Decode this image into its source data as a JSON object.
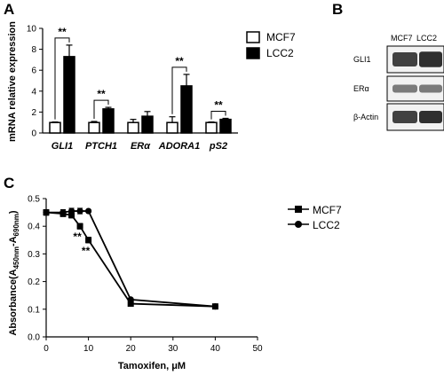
{
  "panels": {
    "a": "A",
    "b": "B",
    "c": "C"
  },
  "chart_data": [
    {
      "type": "bar",
      "panel": "A",
      "ylabel": "mRNA relative expression",
      "ylim": [
        0,
        10
      ],
      "yticks": [
        0,
        2,
        4,
        6,
        8,
        10
      ],
      "categories": [
        "GLI1",
        "PTCH1",
        "ERα",
        "ADORA1",
        "pS2"
      ],
      "series": [
        {
          "name": "MCF7",
          "values": [
            1.0,
            1.0,
            1.0,
            1.0,
            1.0
          ],
          "errors": [
            0.05,
            0.1,
            0.3,
            0.55,
            0.05
          ],
          "color": "#ffffff"
        },
        {
          "name": "LCC2",
          "values": [
            7.3,
            2.3,
            1.6,
            4.5,
            1.3
          ],
          "errors": [
            1.1,
            0.15,
            0.45,
            1.1,
            0.1
          ],
          "color": "#000000"
        }
      ],
      "significance": [
        {
          "category": "GLI1",
          "label": "**"
        },
        {
          "category": "PTCH1",
          "label": "**"
        },
        {
          "category": "ADORA1",
          "label": "**"
        },
        {
          "category": "pS2",
          "label": "**"
        }
      ]
    },
    {
      "type": "line",
      "panel": "C",
      "xlabel": "Tamoxifen, μM",
      "ylabel_main": "Absorbance(A",
      "ylabel_sub1": "450nm",
      "ylabel_mid": "-A",
      "ylabel_sub2": "690nm",
      "ylabel_end": ")",
      "xlim": [
        0,
        50
      ],
      "ylim": [
        0,
        0.5
      ],
      "xticks": [
        0,
        10,
        20,
        30,
        40,
        50
      ],
      "yticks": [
        "0.0",
        "0.1",
        "0.2",
        "0.3",
        "0.4",
        "0.5"
      ],
      "series": [
        {
          "name": "MCF7",
          "marker": "square",
          "x": [
            0,
            4,
            6,
            8,
            10,
            20,
            40
          ],
          "y": [
            0.45,
            0.445,
            0.44,
            0.4,
            0.35,
            0.12,
            0.11
          ],
          "errors": [
            0.01,
            0.01,
            0.01,
            0.01,
            0.01,
            0.005,
            0.005
          ]
        },
        {
          "name": "LCC2",
          "marker": "circle",
          "x": [
            0,
            4,
            6,
            8,
            10,
            20,
            40
          ],
          "y": [
            0.45,
            0.45,
            0.455,
            0.455,
            0.455,
            0.135,
            0.11
          ],
          "errors": [
            0.01,
            0.01,
            0.01,
            0.01,
            0.005,
            0.005,
            0.005
          ]
        }
      ],
      "annotations": [
        {
          "x": 8,
          "y": 0.4,
          "label": "**"
        },
        {
          "x": 10,
          "y": 0.35,
          "label": "**"
        }
      ]
    }
  ],
  "blot": {
    "columns": [
      "MCF7",
      "LCC2"
    ],
    "rows": [
      "GLI1",
      "ERα",
      "β-Actin"
    ]
  }
}
